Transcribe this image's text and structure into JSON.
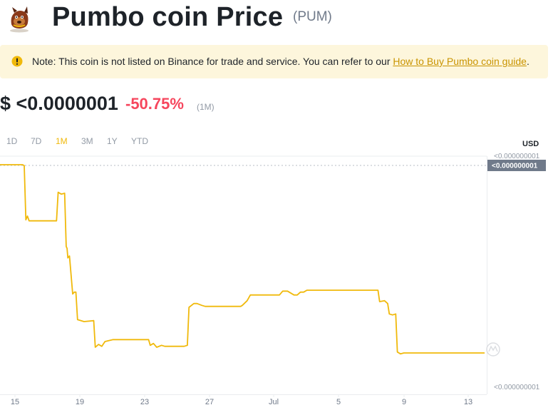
{
  "header": {
    "title": "Pumbo coin Price",
    "symbol": "(PUM)",
    "logo_icon": "pumbo-coin-logo-icon"
  },
  "note": {
    "icon": "warning-circle-icon",
    "text": "Note: This coin is not listed on Binance for trade and service. You can refer to our ",
    "link_text": "How to Buy Pumbo coin guide",
    "suffix": ".",
    "background": "#fdf6dc",
    "link_color": "#c99400"
  },
  "price": {
    "value": "$ <0.0000001",
    "change": "-50.75%",
    "period": "(1M)",
    "change_color": "#f6465d"
  },
  "tabs": {
    "items": [
      "1D",
      "7D",
      "1M",
      "3M",
      "1Y",
      "YTD"
    ],
    "active": "1M"
  },
  "chart_data": {
    "type": "line",
    "title": "",
    "unit_label": "USD",
    "line_color": "#f0b90b",
    "y_axis_labels": [
      "<0.000000001",
      "<0.000000001"
    ],
    "current_price_label": "<0.000000001",
    "x_tick_labels": [
      "15",
      "19",
      "23",
      "27",
      "Jul",
      "5",
      "9",
      "13"
    ],
    "watermark_icon": "coinmarketcap-logo-icon",
    "x": [
      0,
      1.4,
      1.5,
      1.6,
      1.7,
      1.8,
      3.5,
      3.6,
      3.8,
      4,
      4.1,
      4.15,
      4.2,
      4.3,
      4.5,
      4.6,
      4.7,
      4.8,
      5.2,
      5.8,
      5.9,
      6.1,
      6.3,
      6.5,
      7.0,
      9.2,
      9.3,
      9.5,
      9.7,
      10.0,
      10.2,
      11.4,
      11.6,
      11.7,
      12.0,
      12.2,
      12.5,
      12.7,
      14.9,
      15.0,
      15.3,
      15.5,
      16.5,
      17.3,
      17.5,
      17.8,
      18.2,
      18.4,
      18.6,
      18.8,
      19.0,
      19.4,
      23.4,
      23.5,
      23.8,
      24.0,
      24.1,
      24.3,
      24.5,
      24.6,
      24.8,
      25.0,
      30.0
    ],
    "y": [
      100,
      100,
      99.5,
      71,
      73,
      70.5,
      70.5,
      85.5,
      84.5,
      85,
      57,
      56,
      51,
      52,
      32,
      33,
      33,
      18.5,
      17.5,
      18,
      4,
      5.5,
      4.5,
      7,
      8,
      8,
      5,
      6,
      4,
      5,
      4.5,
      4.5,
      5,
      25,
      27,
      27,
      26,
      25.5,
      25.5,
      26,
      28.5,
      31.5,
      31.5,
      31.5,
      33.5,
      33.5,
      31.5,
      31.5,
      33,
      33,
      34,
      34,
      34,
      28,
      28.5,
      27,
      21.5,
      21,
      21.5,
      1.5,
      0.5,
      1,
      1
    ],
    "ylim": [
      -15,
      105
    ],
    "xlim": [
      0,
      30
    ],
    "grid": false
  }
}
